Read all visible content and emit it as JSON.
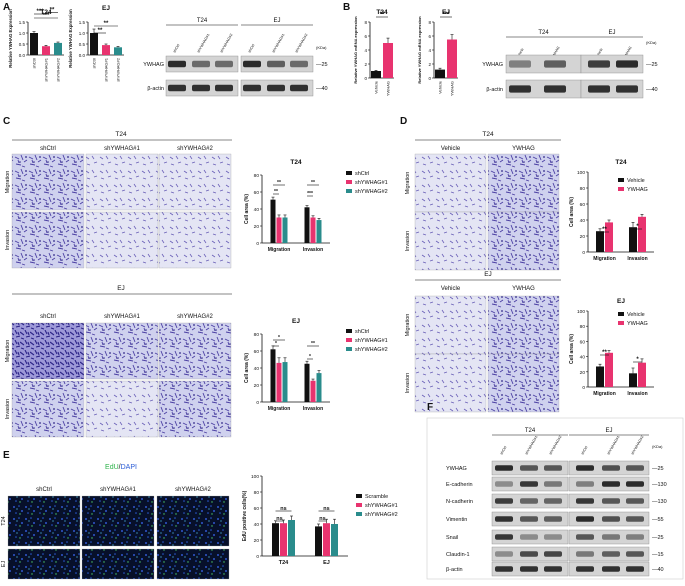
{
  "panels": {
    "A": {
      "letter": "A",
      "chart_t24": {
        "title": "T24",
        "ylabel": "Relative YWHAG Expression"
      },
      "chart_ej": {
        "title": "EJ",
        "ylabel": "Relative YWHAG Expression"
      },
      "blot": {
        "groups": [
          "T24",
          "EJ"
        ],
        "lanes": [
          "shCtrl",
          "shYWHAG#1",
          "shYWHAG#2",
          "shCtrl",
          "shYWHAG#1",
          "shYWHAG#2"
        ],
        "rows": [
          "YWHAG",
          "β-actin"
        ],
        "kda_unit": "(KDa)",
        "markers": [
          "25",
          "40"
        ]
      }
    },
    "B": {
      "letter": "B",
      "chart_t24": {
        "title": "T24",
        "ylabel": "Relative YWHAG mRNA expression"
      },
      "chart_ej": {
        "title": "EJ",
        "ylabel": "Relative YWHAG mRNA expression"
      },
      "blot": {
        "groups": [
          "T24",
          "EJ"
        ],
        "lanes": [
          "Vehicle",
          "YWHAG",
          "Vehicle",
          "YWHAG"
        ],
        "rows": [
          "YWHAG",
          "β-actin"
        ],
        "kda_unit": "(KDa)",
        "markers": [
          "25",
          "40"
        ]
      }
    },
    "C": {
      "letter": "C",
      "t24_title": "T24",
      "ej_title": "EJ",
      "cols": [
        "shCtrl",
        "shYWHAG#1",
        "shYWHAG#2"
      ],
      "rows": [
        "Migration",
        "Invasion"
      ]
    },
    "D": {
      "letter": "D",
      "t24_title": "T24",
      "ej_title": "EJ",
      "cols": [
        "Vehicle",
        "YWHAG"
      ],
      "rows": [
        "Migration",
        "Invasion"
      ]
    },
    "E": {
      "letter": "E",
      "stain_edu": "EdU",
      "stain_sep": "/",
      "stain_dapi": "DAPI",
      "cols": [
        "shCtrl",
        "shYWHAG#1",
        "shYWHAG#2"
      ],
      "rows": [
        "T24",
        "EJ"
      ]
    },
    "F": {
      "letter": "F",
      "groups": [
        "T24",
        "EJ"
      ],
      "lanes": [
        "shCtrl",
        "shYWHAG#1",
        "shYWHAG#2",
        "shCtrl",
        "shYWHAG#1",
        "shYWHAG#2"
      ],
      "rows": [
        "YWHAG",
        "E-cadherin",
        "N-cadherin",
        "Vimentin",
        "Snail",
        "Claudin-1",
        "β-actin"
      ],
      "kda_unit": "(KDa)",
      "markers": [
        "25",
        "130",
        "130",
        "55",
        "25",
        "15",
        "40"
      ]
    }
  },
  "colors": {
    "black": "#111111",
    "pink": "#e8336f",
    "teal": "#2a8c8c",
    "edu": "#2db34a",
    "dapi": "#2a5bd6",
    "stain": "#5a4fb0"
  },
  "chart_data": [
    {
      "id": "A_T24",
      "type": "bar",
      "title": "T24",
      "ylabel": "Relative YWHAG Expression",
      "categories": [
        "shCtrl",
        "shYWHAG#1",
        "shYWHAG#2"
      ],
      "values": [
        1.0,
        0.4,
        0.55
      ],
      "errors": [
        0.06,
        0.04,
        0.04
      ],
      "ylim": [
        0,
        1.5
      ],
      "yticks": [
        "0.0",
        "0.5",
        "1.0",
        "1.5"
      ],
      "significance": [
        "***",
        "***",
        "**"
      ]
    },
    {
      "id": "A_EJ",
      "type": "bar",
      "title": "EJ",
      "ylabel": "Relative YWHAG Expression",
      "categories": [
        "shCtrl",
        "shYWHAG#1",
        "shYWHAG#2"
      ],
      "values": [
        1.0,
        0.45,
        0.35
      ],
      "errors": [
        0.18,
        0.05,
        0.04
      ],
      "ylim": [
        0,
        1.5
      ],
      "yticks": [
        "0.0",
        "0.5",
        "1.0",
        "1.5"
      ],
      "significance": [
        "**",
        "**"
      ]
    },
    {
      "id": "B_T24",
      "type": "bar",
      "title": "T24",
      "ylabel": "Relative YWHAG mRNA expression",
      "categories": [
        "Vehicle",
        "YWHAG"
      ],
      "values": [
        1.0,
        5.0
      ],
      "errors": [
        0.1,
        0.7
      ],
      "ylim": [
        0,
        8
      ],
      "yticks": [
        "0",
        "2",
        "4",
        "6",
        "8"
      ],
      "significance": [
        "**"
      ]
    },
    {
      "id": "B_EJ",
      "type": "bar",
      "title": "EJ",
      "ylabel": "Relative YWHAG mRNA expression",
      "categories": [
        "Vehicle",
        "YWHAG"
      ],
      "values": [
        1.2,
        5.5
      ],
      "errors": [
        0.2,
        0.7
      ],
      "ylim": [
        0,
        8
      ],
      "yticks": [
        "0",
        "2",
        "4",
        "6",
        "8"
      ],
      "significance": [
        "***"
      ]
    },
    {
      "id": "C_T24",
      "type": "bar",
      "title": "T24",
      "ylabel": "Cell area (%)",
      "categories": [
        "Migration",
        "Invasion"
      ],
      "series": [
        {
          "name": "shCtrl",
          "values": [
            51,
            42
          ],
          "errors": [
            3,
            2
          ]
        },
        {
          "name": "shYWHAG#1",
          "values": [
            30,
            30
          ],
          "errors": [
            3,
            2
          ]
        },
        {
          "name": "shYWHAG#2",
          "values": [
            30,
            27
          ],
          "errors": [
            3,
            2
          ]
        }
      ],
      "ylim": [
        0,
        80
      ],
      "yticks": [
        "0",
        "20",
        "40",
        "60",
        "80"
      ],
      "significance": [
        "**",
        "**",
        "***",
        "**"
      ]
    },
    {
      "id": "C_EJ",
      "type": "bar",
      "title": "EJ",
      "ylabel": "Cell area (%)",
      "categories": [
        "Migration",
        "Invasion"
      ],
      "series": [
        {
          "name": "shCtrl",
          "values": [
            62,
            45
          ],
          "errors": [
            4,
            3
          ]
        },
        {
          "name": "shYWHAG#1",
          "values": [
            46,
            25
          ],
          "errors": [
            6,
            2
          ]
        },
        {
          "name": "shYWHAG#2",
          "values": [
            47,
            34
          ],
          "errors": [
            5,
            3
          ]
        }
      ],
      "ylim": [
        0,
        80
      ],
      "yticks": [
        "0",
        "20",
        "40",
        "60",
        "80"
      ],
      "significance": [
        "*",
        "*",
        "*",
        "**"
      ]
    },
    {
      "id": "D_T24",
      "type": "bar",
      "title": "T24",
      "ylabel": "Cell area (%)",
      "categories": [
        "Migration",
        "Invasion"
      ],
      "series": [
        {
          "name": "Vehicle",
          "values": [
            26,
            31
          ],
          "errors": [
            3,
            6
          ]
        },
        {
          "name": "YWHAG",
          "values": [
            37,
            44
          ],
          "errors": [
            3,
            3
          ]
        }
      ],
      "ylim": [
        0,
        100
      ],
      "yticks": [
        "0",
        "20",
        "40",
        "60",
        "80",
        "100"
      ],
      "significance": [
        "**",
        "*"
      ]
    },
    {
      "id": "D_EJ",
      "type": "bar",
      "title": "EJ",
      "ylabel": "Cell area (%)",
      "categories": [
        "Migration",
        "Invasion"
      ],
      "series": [
        {
          "name": "Vehicle",
          "values": [
            27,
            18
          ],
          "errors": [
            3,
            7
          ]
        },
        {
          "name": "YWHAG",
          "values": [
            45,
            32
          ],
          "errors": [
            3,
            5
          ]
        }
      ],
      "ylim": [
        0,
        100
      ],
      "yticks": [
        "0",
        "20",
        "40",
        "60",
        "80",
        "100"
      ],
      "significance": [
        "**",
        "*"
      ]
    },
    {
      "id": "E",
      "type": "bar",
      "title": "",
      "ylabel": "EdU positive cells(%)",
      "categories": [
        "T24",
        "EJ"
      ],
      "series": [
        {
          "name": "Scramble",
          "values": [
            41,
            37
          ],
          "errors": [
            3,
            3
          ]
        },
        {
          "name": "shYWHAG#1",
          "values": [
            41,
            41
          ],
          "errors": [
            4,
            5
          ]
        },
        {
          "name": "shYWHAG#2",
          "values": [
            45,
            40
          ],
          "errors": [
            5,
            6
          ]
        }
      ],
      "ylim": [
        0,
        100
      ],
      "yticks": [
        "0",
        "20",
        "40",
        "60",
        "80",
        "100"
      ],
      "significance": [
        "ns",
        "ns",
        "ns",
        "ns"
      ]
    }
  ]
}
